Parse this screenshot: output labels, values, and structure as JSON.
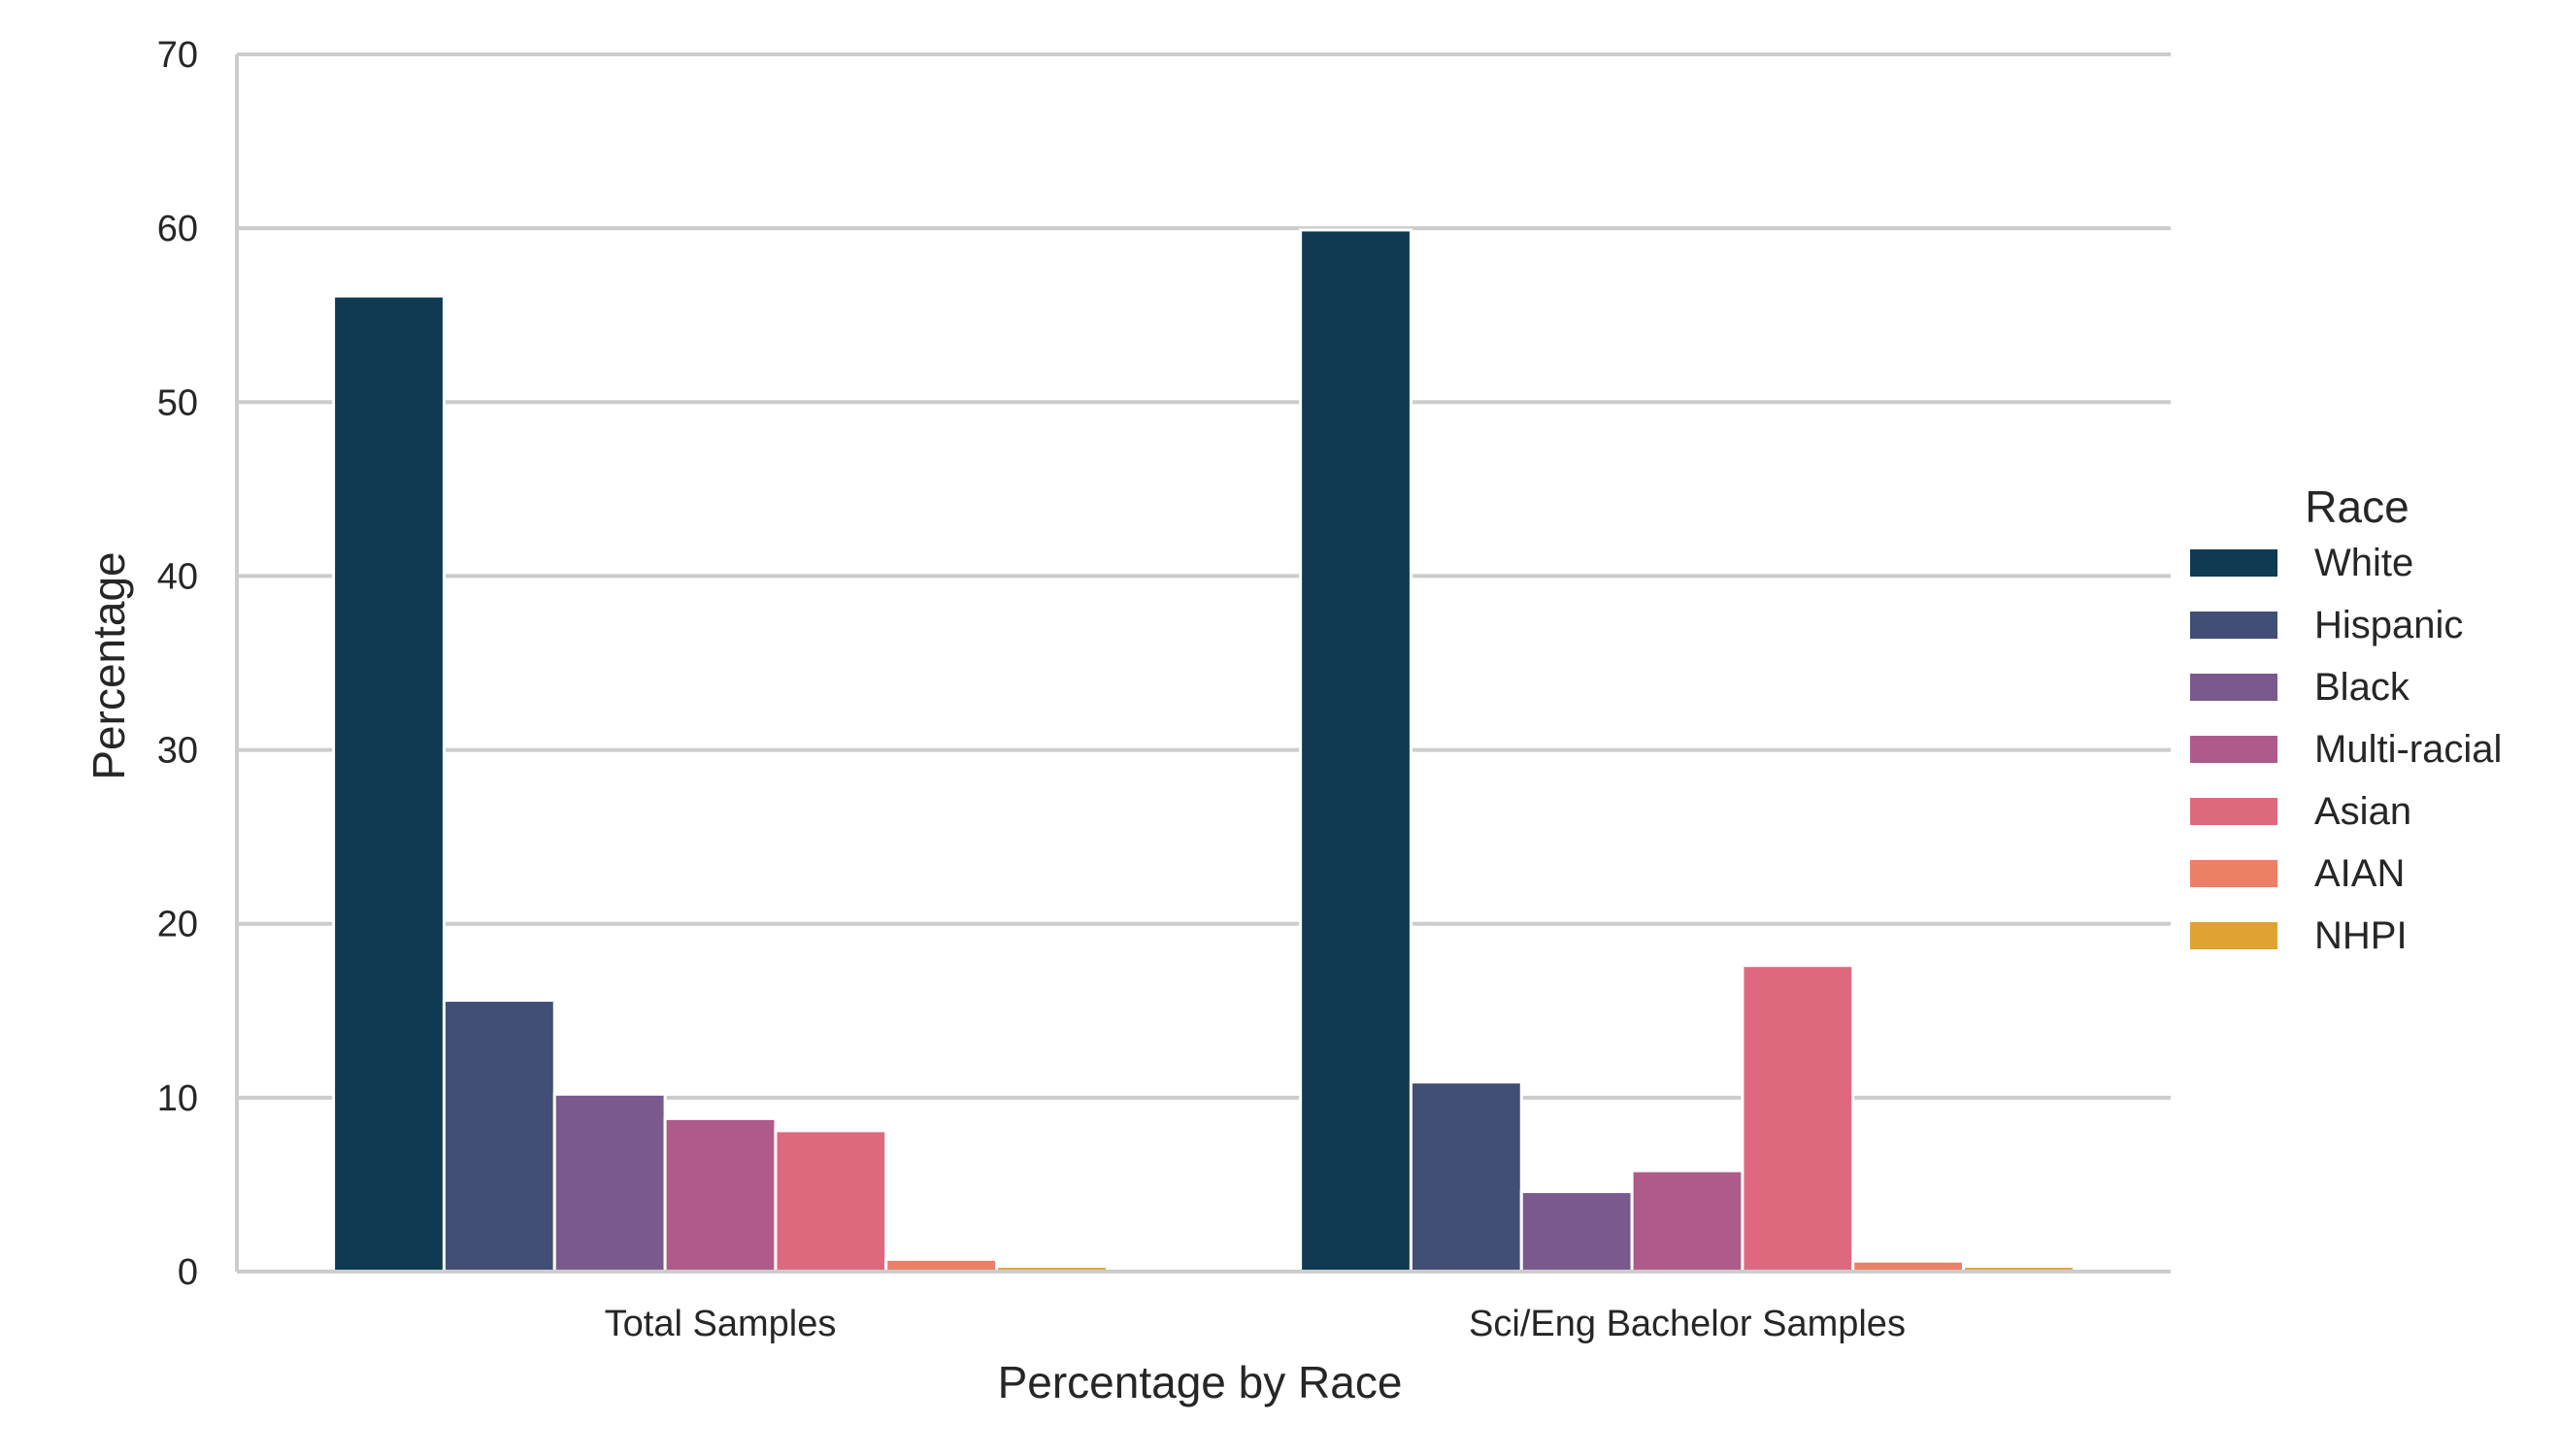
{
  "chart_data": {
    "type": "bar",
    "categories": [
      "Total Samples",
      "Sci/Eng Bachelor Samples"
    ],
    "series": [
      {
        "name": "White",
        "color": "#0f3a52",
        "values": [
          56.1,
          59.9
        ]
      },
      {
        "name": "Hispanic",
        "color": "#414f77",
        "values": [
          15.6,
          10.9
        ]
      },
      {
        "name": "Black",
        "color": "#7a5a8c",
        "values": [
          10.2,
          4.6
        ]
      },
      {
        "name": "Multi-racial",
        "color": "#ae5b8a",
        "values": [
          8.8,
          5.8
        ]
      },
      {
        "name": "Asian",
        "color": "#de697f",
        "values": [
          8.1,
          17.6
        ]
      },
      {
        "name": "AIAN",
        "color": "#ec8066",
        "values": [
          0.7,
          0.6
        ]
      },
      {
        "name": "NHPI",
        "color": "#e0a233",
        "values": [
          0.3,
          0.3
        ]
      }
    ],
    "xlabel": "Percentage by Race",
    "ylabel": "Percentage",
    "ylim": [
      0,
      70
    ],
    "yticks": [
      0,
      10,
      20,
      30,
      40,
      50,
      60,
      70
    ],
    "legend_title": "Race",
    "legend_position": "right",
    "grid": "horizontal"
  }
}
